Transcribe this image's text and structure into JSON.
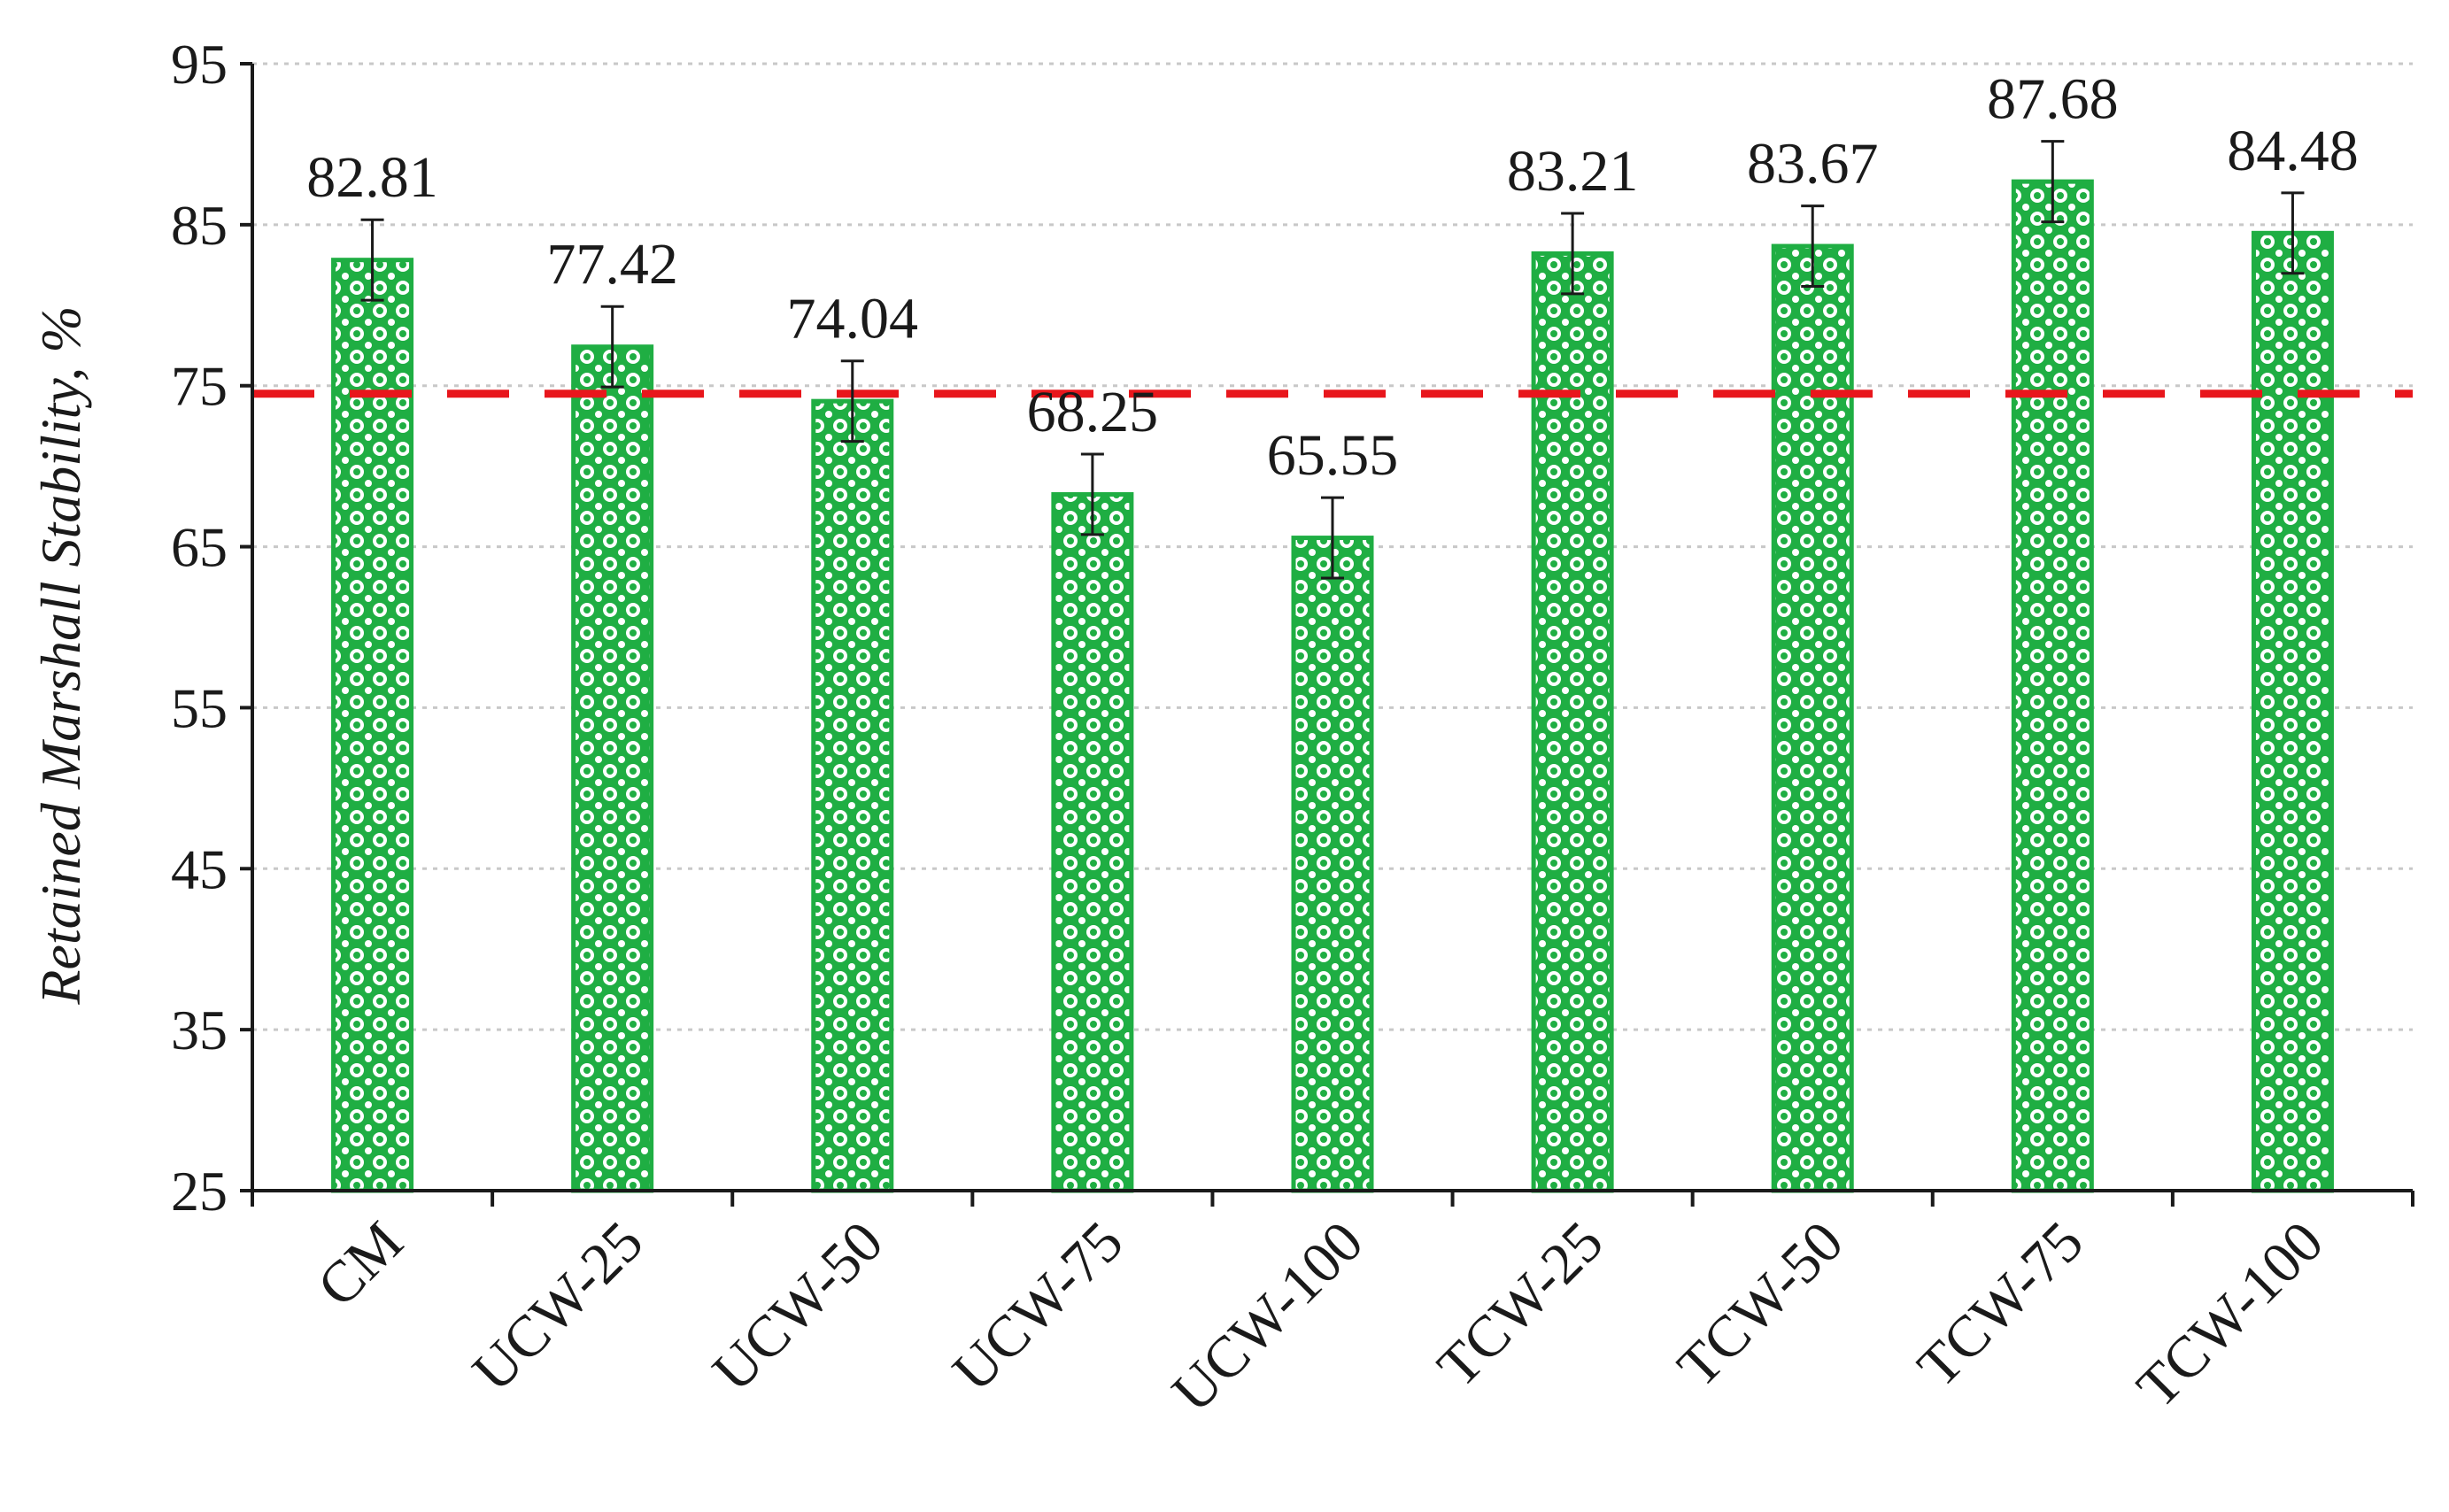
{
  "chart_data": {
    "type": "bar",
    "title": "",
    "xlabel": "",
    "ylabel": "Retained Marshall Stability, %",
    "ylim": [
      25,
      95
    ],
    "yticks": [
      25,
      35,
      45,
      55,
      65,
      75,
      85,
      95
    ],
    "grid": true,
    "categories": [
      "CM",
      "UCW-25",
      "UCW-50",
      "UCW-75",
      "UCW-100",
      "TCW-25",
      "TCW-50",
      "TCW-75",
      "TCW-100"
    ],
    "values": [
      82.81,
      77.42,
      74.04,
      68.25,
      65.55,
      83.21,
      83.67,
      87.68,
      84.48
    ],
    "value_labels": [
      "82.81",
      "77.42",
      "74.04",
      "68.25",
      "65.55",
      "83.21",
      "83.67",
      "87.68",
      "84.48"
    ],
    "error": [
      2.5,
      2.5,
      2.5,
      2.5,
      2.5,
      2.5,
      2.5,
      2.5,
      2.5
    ],
    "reference_line": {
      "value": 74.5,
      "style": "dashed",
      "color": "#e8161c"
    },
    "colors": {
      "bar": "#1fae43",
      "pattern_dot": "#ffffff",
      "grid": "#c8c8c8",
      "axis": "#1a1a1a",
      "text": "#1a1a1a"
    }
  }
}
